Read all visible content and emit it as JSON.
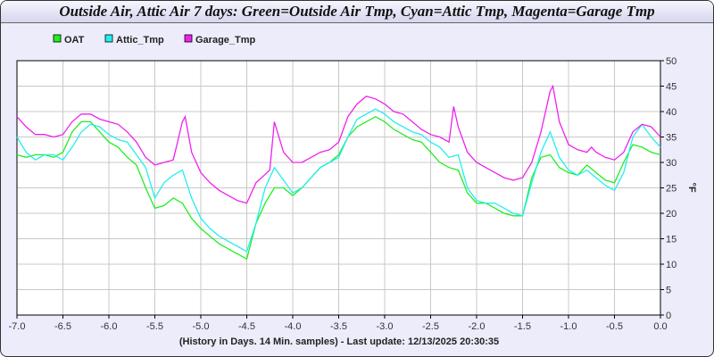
{
  "chart_data": {
    "type": "line",
    "title": "Outside Air, Attic Air 7 days: Green=Outside Air Tmp, Cyan=Attic Tmp, Magenta=Garage Tmp",
    "xlabel": "(History in Days. 14 Min. samples) - Last update: 12/13/2025 20:30:35",
    "ylabel": "°F",
    "xlim": [
      -7.0,
      0.0
    ],
    "ylim": [
      0,
      50
    ],
    "xticks": [
      "-7.0",
      "-6.5",
      "-6.0",
      "-5.5",
      "-5.0",
      "-4.5",
      "-4.0",
      "-3.5",
      "-3.0",
      "-2.5",
      "-2.0",
      "-1.5",
      "-1.0",
      "-0.5",
      "0.0"
    ],
    "yticks": [
      "0",
      "5",
      "10",
      "15",
      "20",
      "25",
      "30",
      "35",
      "40",
      "45",
      "50"
    ],
    "grid": true,
    "legend_position": "top-left",
    "series": [
      {
        "name": "OAT",
        "color": "#22ee22",
        "x": [
          -7.0,
          -6.9,
          -6.8,
          -6.7,
          -6.6,
          -6.5,
          -6.4,
          -6.3,
          -6.2,
          -6.1,
          -6.0,
          -5.9,
          -5.8,
          -5.7,
          -5.6,
          -5.5,
          -5.4,
          -5.3,
          -5.2,
          -5.1,
          -5.0,
          -4.9,
          -4.8,
          -4.7,
          -4.6,
          -4.5,
          -4.4,
          -4.3,
          -4.2,
          -4.1,
          -4.0,
          -3.9,
          -3.8,
          -3.7,
          -3.6,
          -3.5,
          -3.4,
          -3.3,
          -3.2,
          -3.1,
          -3.0,
          -2.9,
          -2.8,
          -2.7,
          -2.6,
          -2.5,
          -2.4,
          -2.3,
          -2.2,
          -2.1,
          -2.0,
          -1.9,
          -1.8,
          -1.7,
          -1.6,
          -1.5,
          -1.4,
          -1.3,
          -1.2,
          -1.1,
          -1.0,
          -0.9,
          -0.8,
          -0.7,
          -0.6,
          -0.5,
          -0.4,
          -0.3,
          -0.2,
          -0.1,
          0.0
        ],
        "y": [
          31.5,
          31,
          31.5,
          31.5,
          31,
          32,
          36,
          38,
          38,
          36,
          34,
          33,
          31,
          29.5,
          25,
          21,
          21.5,
          23,
          22,
          19,
          17,
          15.5,
          14,
          13,
          12,
          11,
          18,
          22,
          25,
          25,
          23.5,
          25,
          27,
          29,
          30,
          31.5,
          35,
          37,
          38,
          39,
          38,
          36.5,
          35.5,
          34.5,
          34,
          32,
          30,
          29,
          28.5,
          24,
          22,
          22,
          21,
          20,
          19.5,
          19.5,
          27,
          31,
          31.5,
          29,
          28,
          27.5,
          29.5,
          28,
          26.5,
          26,
          30,
          33.5,
          33,
          32,
          31.5
        ]
      },
      {
        "name": "Attic_Tmp",
        "color": "#22eeee",
        "x": [
          -7.0,
          -6.9,
          -6.8,
          -6.7,
          -6.6,
          -6.5,
          -6.4,
          -6.3,
          -6.2,
          -6.1,
          -6.0,
          -5.9,
          -5.8,
          -5.7,
          -5.6,
          -5.5,
          -5.4,
          -5.3,
          -5.2,
          -5.1,
          -5.0,
          -4.9,
          -4.8,
          -4.7,
          -4.6,
          -4.5,
          -4.4,
          -4.3,
          -4.2,
          -4.1,
          -4.0,
          -3.9,
          -3.8,
          -3.7,
          -3.6,
          -3.5,
          -3.4,
          -3.3,
          -3.2,
          -3.1,
          -3.0,
          -2.9,
          -2.8,
          -2.7,
          -2.6,
          -2.5,
          -2.4,
          -2.3,
          -2.2,
          -2.1,
          -2.0,
          -1.9,
          -1.8,
          -1.7,
          -1.6,
          -1.5,
          -1.4,
          -1.3,
          -1.2,
          -1.1,
          -1.0,
          -0.9,
          -0.8,
          -0.7,
          -0.6,
          -0.5,
          -0.4,
          -0.3,
          -0.2,
          -0.1,
          0.0
        ],
        "y": [
          35,
          32,
          30.5,
          31.5,
          31.5,
          30.5,
          33,
          36,
          37.5,
          37,
          35.5,
          34.5,
          34,
          31.5,
          29,
          23,
          26,
          27.5,
          28.5,
          23,
          19,
          17,
          15.5,
          14.5,
          13.5,
          12.5,
          18,
          25,
          29,
          26.5,
          24,
          25,
          27,
          29,
          30,
          31,
          35,
          38.5,
          39.5,
          40.5,
          39.5,
          38,
          37,
          36,
          35.5,
          34,
          33,
          31,
          31.5,
          25,
          22.5,
          22,
          22,
          21,
          20,
          19.5,
          26,
          32,
          36,
          31,
          28.5,
          27.5,
          28.5,
          27,
          25.5,
          24.5,
          28,
          35,
          37.5,
          35,
          33
        ]
      },
      {
        "name": "Garage_Tmp",
        "color": "#ee22ee",
        "x": [
          -7.0,
          -6.9,
          -6.8,
          -6.7,
          -6.6,
          -6.5,
          -6.4,
          -6.3,
          -6.2,
          -6.1,
          -6.0,
          -5.9,
          -5.8,
          -5.7,
          -5.6,
          -5.5,
          -5.4,
          -5.3,
          -5.2,
          -5.17,
          -5.1,
          -5.0,
          -4.9,
          -4.8,
          -4.7,
          -4.6,
          -4.5,
          -4.4,
          -4.25,
          -4.2,
          -4.1,
          -4.0,
          -3.9,
          -3.8,
          -3.7,
          -3.6,
          -3.5,
          -3.4,
          -3.3,
          -3.2,
          -3.1,
          -3.0,
          -2.9,
          -2.8,
          -2.7,
          -2.6,
          -2.5,
          -2.4,
          -2.3,
          -2.25,
          -2.2,
          -2.1,
          -2.0,
          -1.9,
          -1.8,
          -1.7,
          -1.6,
          -1.5,
          -1.4,
          -1.3,
          -1.2,
          -1.17,
          -1.1,
          -1.0,
          -0.9,
          -0.8,
          -0.75,
          -0.7,
          -0.6,
          -0.5,
          -0.4,
          -0.3,
          -0.2,
          -0.1,
          0.0
        ],
        "y": [
          39,
          37,
          35.5,
          35.5,
          35,
          35.5,
          38,
          39.5,
          39.5,
          38.5,
          38,
          37.5,
          36,
          34,
          31,
          29.5,
          30,
          30.5,
          38,
          39,
          32,
          28,
          26,
          24.5,
          23.5,
          22.5,
          22,
          26,
          28.5,
          38,
          32,
          30,
          30,
          31,
          32,
          32.5,
          34,
          39,
          41.5,
          43,
          42.5,
          41.5,
          40,
          39.5,
          38,
          36.5,
          35.5,
          35,
          34,
          41,
          37,
          32,
          30,
          29,
          28,
          27,
          26.5,
          27,
          30,
          36,
          44,
          45,
          38,
          33.5,
          32.5,
          32,
          33,
          32,
          31,
          30.5,
          32,
          36,
          37.5,
          37,
          35
        ]
      }
    ]
  }
}
